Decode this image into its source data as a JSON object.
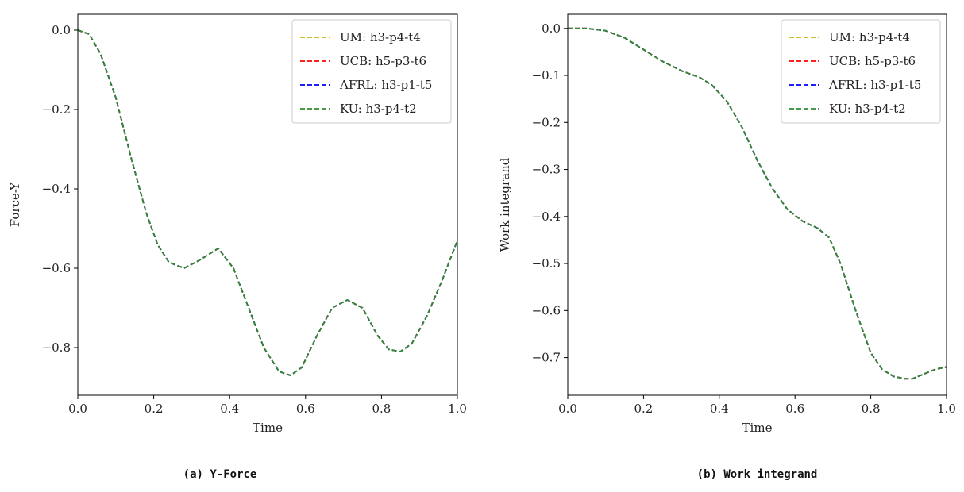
{
  "chart_data": [
    {
      "type": "line",
      "id": "a",
      "caption": "(a) Y-Force",
      "xlabel": "Time",
      "ylabel": "Force-Y",
      "xlim": [
        0.0,
        1.0
      ],
      "ylim": [
        -0.92,
        0.04
      ],
      "xticks": [
        0.0,
        0.2,
        0.4,
        0.6,
        0.8,
        1.0
      ],
      "xtick_labels": [
        "0.0",
        "0.2",
        "0.4",
        "0.6",
        "0.8",
        "1.0"
      ],
      "yticks": [
        0.0,
        -0.2,
        -0.4,
        -0.6,
        -0.8
      ],
      "ytick_labels": [
        "0.0",
        "−0.2",
        "−0.4",
        "−0.6",
        "−0.8"
      ],
      "legend_position": "top-right",
      "grid": false,
      "x": [
        0.0,
        0.03,
        0.06,
        0.1,
        0.14,
        0.18,
        0.21,
        0.24,
        0.28,
        0.32,
        0.37,
        0.41,
        0.45,
        0.49,
        0.53,
        0.56,
        0.59,
        0.63,
        0.67,
        0.71,
        0.75,
        0.79,
        0.82,
        0.85,
        0.88,
        0.92,
        0.96,
        1.0
      ],
      "series": [
        {
          "name": "UM: h3-p4-t4",
          "color": "#c8b400",
          "y": [
            0.0,
            -0.01,
            -0.06,
            -0.17,
            -0.32,
            -0.46,
            -0.54,
            -0.585,
            -0.6,
            -0.58,
            -0.55,
            -0.6,
            -0.7,
            -0.8,
            -0.86,
            -0.87,
            -0.85,
            -0.77,
            -0.7,
            -0.68,
            -0.7,
            -0.77,
            -0.805,
            -0.81,
            -0.79,
            -0.72,
            -0.63,
            -0.53
          ]
        },
        {
          "name": "UCB: h5-p3-t6",
          "color": "#ff0000",
          "y": [
            0.0,
            -0.01,
            -0.06,
            -0.17,
            -0.32,
            -0.46,
            -0.54,
            -0.585,
            -0.6,
            -0.58,
            -0.55,
            -0.6,
            -0.7,
            -0.8,
            -0.86,
            -0.87,
            -0.85,
            -0.77,
            -0.7,
            -0.68,
            -0.7,
            -0.77,
            -0.805,
            -0.81,
            -0.79,
            -0.72,
            -0.63,
            -0.53
          ]
        },
        {
          "name": "AFRL: h3-p1-t5",
          "color": "#0000ff",
          "y": [
            0.0,
            -0.01,
            -0.06,
            -0.17,
            -0.32,
            -0.46,
            -0.54,
            -0.585,
            -0.6,
            -0.58,
            -0.55,
            -0.6,
            -0.7,
            -0.8,
            -0.86,
            -0.87,
            -0.85,
            -0.77,
            -0.7,
            -0.68,
            -0.7,
            -0.77,
            -0.805,
            -0.81,
            -0.79,
            -0.72,
            -0.63,
            -0.53
          ]
        },
        {
          "name": "KU: h3-p4-t2",
          "color": "#2e8b2e",
          "y": [
            0.0,
            -0.01,
            -0.06,
            -0.17,
            -0.32,
            -0.46,
            -0.54,
            -0.585,
            -0.6,
            -0.58,
            -0.55,
            -0.6,
            -0.7,
            -0.8,
            -0.86,
            -0.87,
            -0.85,
            -0.77,
            -0.7,
            -0.68,
            -0.7,
            -0.77,
            -0.805,
            -0.81,
            -0.79,
            -0.72,
            -0.63,
            -0.53
          ]
        }
      ]
    },
    {
      "type": "line",
      "id": "b",
      "caption": "(b) Work integrand",
      "xlabel": "Time",
      "ylabel": "Work integrand",
      "xlim": [
        0.0,
        1.0
      ],
      "ylim": [
        -0.78,
        0.03
      ],
      "xticks": [
        0.0,
        0.2,
        0.4,
        0.6,
        0.8,
        1.0
      ],
      "xtick_labels": [
        "0.0",
        "0.2",
        "0.4",
        "0.6",
        "0.8",
        "1.0"
      ],
      "yticks": [
        0.0,
        -0.1,
        -0.2,
        -0.3,
        -0.4,
        -0.5,
        -0.6,
        -0.7
      ],
      "ytick_labels": [
        "0.0",
        "−0.1",
        "−0.2",
        "−0.3",
        "−0.4",
        "−0.5",
        "−0.6",
        "−0.7"
      ],
      "legend_position": "top-right",
      "grid": false,
      "x": [
        0.0,
        0.05,
        0.1,
        0.15,
        0.2,
        0.25,
        0.3,
        0.35,
        0.38,
        0.42,
        0.46,
        0.5,
        0.54,
        0.58,
        0.62,
        0.66,
        0.69,
        0.72,
        0.76,
        0.8,
        0.83,
        0.86,
        0.89,
        0.91,
        0.94,
        0.97,
        1.0
      ],
      "series": [
        {
          "name": "UM: h3-p4-t4",
          "color": "#c8b400",
          "y": [
            0.0,
            0.0,
            -0.005,
            -0.02,
            -0.045,
            -0.07,
            -0.09,
            -0.105,
            -0.12,
            -0.155,
            -0.21,
            -0.28,
            -0.34,
            -0.385,
            -0.41,
            -0.425,
            -0.445,
            -0.5,
            -0.6,
            -0.69,
            -0.725,
            -0.74,
            -0.745,
            -0.745,
            -0.735,
            -0.725,
            -0.72
          ]
        },
        {
          "name": "UCB: h5-p3-t6",
          "color": "#ff0000",
          "y": [
            0.0,
            0.0,
            -0.005,
            -0.02,
            -0.045,
            -0.07,
            -0.09,
            -0.105,
            -0.12,
            -0.155,
            -0.21,
            -0.28,
            -0.34,
            -0.385,
            -0.41,
            -0.425,
            -0.445,
            -0.5,
            -0.6,
            -0.69,
            -0.725,
            -0.74,
            -0.745,
            -0.745,
            -0.735,
            -0.725,
            -0.72
          ]
        },
        {
          "name": "AFRL: h3-p1-t5",
          "color": "#0000ff",
          "y": [
            0.0,
            0.0,
            -0.005,
            -0.02,
            -0.045,
            -0.07,
            -0.09,
            -0.105,
            -0.12,
            -0.155,
            -0.21,
            -0.28,
            -0.34,
            -0.385,
            -0.41,
            -0.425,
            -0.445,
            -0.5,
            -0.6,
            -0.69,
            -0.725,
            -0.74,
            -0.745,
            -0.745,
            -0.735,
            -0.725,
            -0.72
          ]
        },
        {
          "name": "KU: h3-p4-t2",
          "color": "#2e8b2e",
          "y": [
            0.0,
            0.0,
            -0.005,
            -0.02,
            -0.045,
            -0.07,
            -0.09,
            -0.105,
            -0.12,
            -0.155,
            -0.21,
            -0.28,
            -0.34,
            -0.385,
            -0.41,
            -0.425,
            -0.445,
            -0.5,
            -0.6,
            -0.69,
            -0.725,
            -0.74,
            -0.745,
            -0.745,
            -0.735,
            -0.725,
            -0.72
          ]
        }
      ]
    }
  ]
}
